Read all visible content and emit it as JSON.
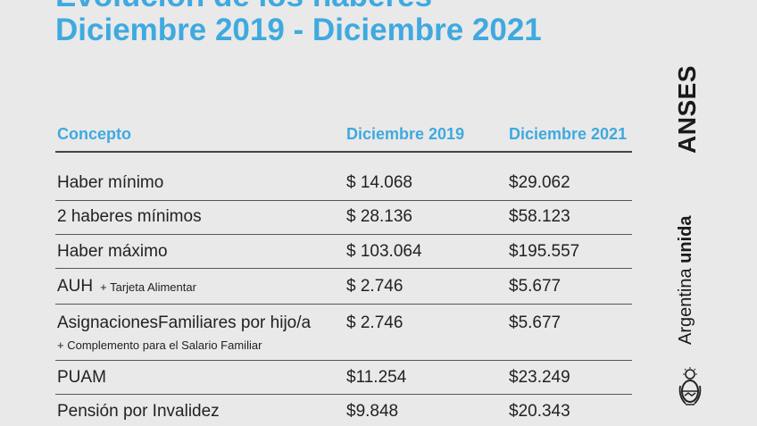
{
  "title": {
    "line1": "Evolución de los haberes",
    "line2": "Diciembre 2019 - Diciembre 2021"
  },
  "table": {
    "headers": {
      "concept": "Concepto",
      "col2019": "Diciembre 2019",
      "col2021": "Diciembre 2021"
    },
    "rows": [
      {
        "concept": "Haber mínimo",
        "note": "",
        "subnote": "",
        "v2019": "$ 14.068",
        "v2021": "$29.062"
      },
      {
        "concept": "2 haberes mínimos",
        "note": "",
        "subnote": "",
        "v2019": "$ 28.136",
        "v2021": "$58.123"
      },
      {
        "concept": "Haber máximo",
        "note": "",
        "subnote": "",
        "v2019": "$ 103.064",
        "v2021": "$195.557"
      },
      {
        "concept": "AUH",
        "note": "+ Tarjeta Alimentar",
        "subnote": "",
        "v2019": "$ 2.746",
        "v2021": "$5.677"
      },
      {
        "concept": "AsignacionesFamiliares por hijo/a",
        "note": "",
        "subnote": "+ Complemento para el Salario Familiar",
        "v2019": "$ 2.746",
        "v2021": "$5.677"
      },
      {
        "concept": "PUAM",
        "note": "",
        "subnote": "",
        "v2019": "$11.254",
        "v2021": "$23.249"
      },
      {
        "concept": "Pensión por Invalidez",
        "note": "",
        "subnote": "",
        "v2019": "$9.848",
        "v2021": "$20.343"
      }
    ]
  },
  "brand": {
    "anses": "ANSES",
    "argentina_light": "Argentina",
    "argentina_bold": "unida",
    "emblem_icon": "argentina-coat-of-arms-icon"
  },
  "colors": {
    "accent": "#3fa9e0",
    "background": "#e9e9e9",
    "text": "#222222"
  }
}
